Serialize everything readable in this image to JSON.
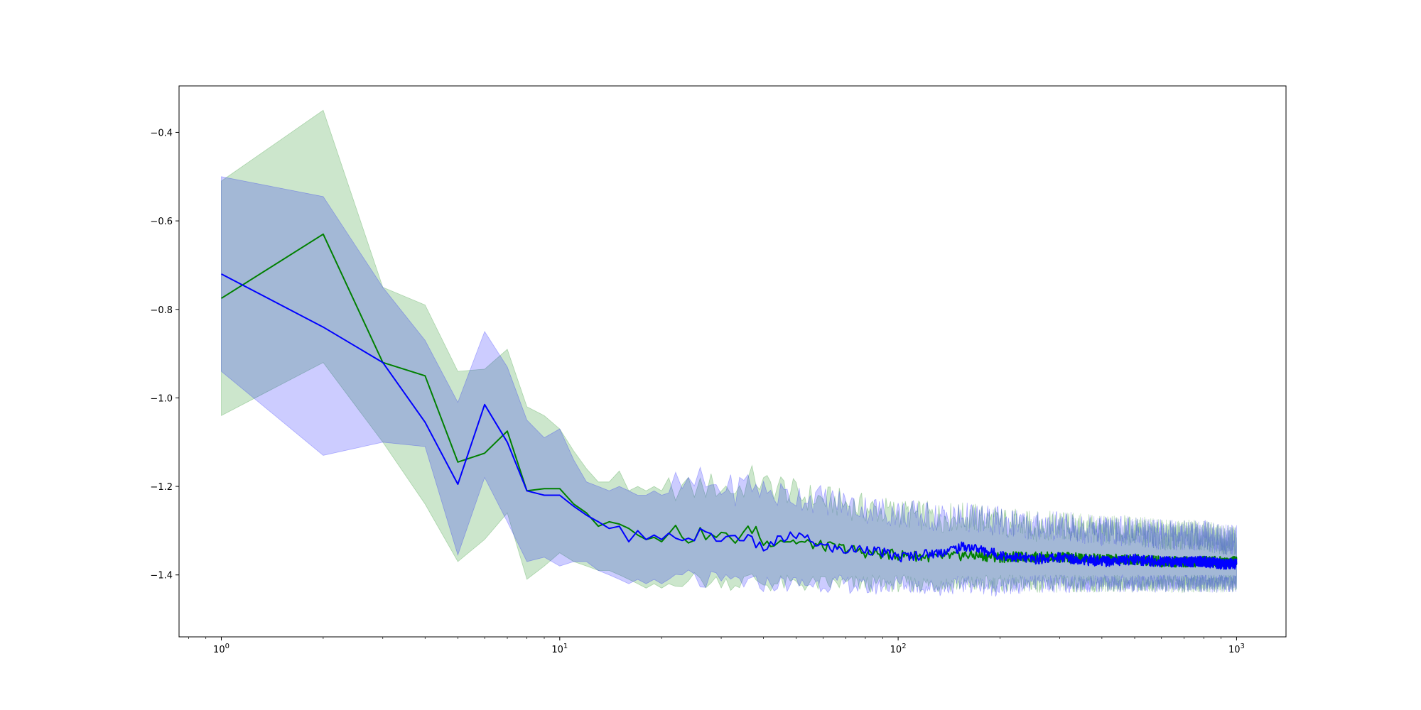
{
  "chart_data": {
    "type": "line",
    "title": "",
    "xlabel": "",
    "ylabel": "",
    "xscale": "log",
    "xlim": [
      0.75,
      1400
    ],
    "ylim": [
      -1.54,
      -0.295
    ],
    "grid": false,
    "legend": "none",
    "x_ticks": [
      {
        "base": "10",
        "exp": "0",
        "value": 1
      },
      {
        "base": "10",
        "exp": "1",
        "value": 10
      },
      {
        "base": "10",
        "exp": "2",
        "value": 100
      },
      {
        "base": "10",
        "exp": "3",
        "value": 1000
      }
    ],
    "y_ticks": [
      {
        "label": "−0.4",
        "value": -0.4
      },
      {
        "label": "−0.6",
        "value": -0.6
      },
      {
        "label": "−0.8",
        "value": -0.8
      },
      {
        "label": "−1.0",
        "value": -1.0
      },
      {
        "label": "−1.2",
        "value": -1.2
      },
      {
        "label": "−1.4",
        "value": -1.4
      }
    ],
    "series": [
      {
        "color": "#008000",
        "band_color": "#008000",
        "x": [
          1,
          2,
          3,
          4,
          5,
          6,
          7,
          8,
          9,
          10,
          11,
          12,
          13,
          14,
          15,
          16,
          17,
          18,
          19,
          20,
          22,
          24,
          26,
          28,
          30,
          33,
          36,
          38,
          40,
          45,
          50,
          60,
          70,
          80,
          100,
          130,
          160,
          200,
          250,
          300,
          400,
          500,
          600,
          700,
          800,
          900,
          1000
        ],
        "values": [
          -0.775,
          -0.63,
          -0.92,
          -0.95,
          -1.145,
          -1.125,
          -1.075,
          -1.21,
          -1.205,
          -1.205,
          -1.24,
          -1.26,
          -1.29,
          -1.28,
          -1.285,
          -1.295,
          -1.31,
          -1.32,
          -1.315,
          -1.325,
          -1.295,
          -1.32,
          -1.305,
          -1.315,
          -1.31,
          -1.32,
          -1.3,
          -1.295,
          -1.33,
          -1.32,
          -1.325,
          -1.335,
          -1.34,
          -1.35,
          -1.355,
          -1.36,
          -1.355,
          -1.36,
          -1.36,
          -1.36,
          -1.365,
          -1.365,
          -1.37,
          -1.37,
          -1.37,
          -1.37,
          -1.37
        ],
        "lower": [
          -1.04,
          -0.92,
          -1.1,
          -1.24,
          -1.37,
          -1.32,
          -1.26,
          -1.41,
          -1.38,
          -1.35,
          -1.37,
          -1.38,
          -1.39,
          -1.39,
          -1.4,
          -1.41,
          -1.42,
          -1.43,
          -1.42,
          -1.43,
          -1.41,
          -1.41,
          -1.41,
          -1.42,
          -1.41,
          -1.42,
          -1.41,
          -1.41,
          -1.42,
          -1.42,
          -1.42,
          -1.42,
          -1.42,
          -1.42,
          -1.42,
          -1.42,
          -1.42,
          -1.42,
          -1.42,
          -1.42,
          -1.42,
          -1.42,
          -1.42,
          -1.42,
          -1.42,
          -1.42,
          -1.42
        ],
        "upper": [
          -0.51,
          -0.35,
          -0.75,
          -0.79,
          -0.94,
          -0.935,
          -0.89,
          -1.02,
          -1.04,
          -1.07,
          -1.12,
          -1.16,
          -1.19,
          -1.19,
          -1.165,
          -1.21,
          -1.2,
          -1.21,
          -1.2,
          -1.21,
          -1.2,
          -1.21,
          -1.2,
          -1.2,
          -1.2,
          -1.21,
          -1.19,
          -1.18,
          -1.2,
          -1.2,
          -1.22,
          -1.23,
          -1.24,
          -1.25,
          -1.26,
          -1.27,
          -1.27,
          -1.28,
          -1.29,
          -1.29,
          -1.3,
          -1.3,
          -1.31,
          -1.31,
          -1.31,
          -1.32,
          -1.32
        ]
      },
      {
        "color": "#0000ff",
        "band_color": "#0000ff",
        "x": [
          1,
          2,
          3,
          4,
          5,
          6,
          7,
          8,
          9,
          10,
          11,
          12,
          13,
          14,
          15,
          16,
          17,
          18,
          19,
          20,
          22,
          24,
          26,
          28,
          30,
          33,
          36,
          38,
          40,
          45,
          50,
          60,
          70,
          80,
          100,
          130,
          160,
          200,
          250,
          300,
          400,
          500,
          600,
          700,
          800,
          900,
          1000
        ],
        "values": [
          -0.72,
          -0.84,
          -0.92,
          -1.055,
          -1.195,
          -1.015,
          -1.1,
          -1.21,
          -1.22,
          -1.22,
          -1.245,
          -1.265,
          -1.28,
          -1.295,
          -1.29,
          -1.325,
          -1.3,
          -1.32,
          -1.31,
          -1.32,
          -1.31,
          -1.32,
          -1.305,
          -1.315,
          -1.32,
          -1.31,
          -1.32,
          -1.33,
          -1.34,
          -1.32,
          -1.31,
          -1.335,
          -1.345,
          -1.34,
          -1.36,
          -1.35,
          -1.335,
          -1.355,
          -1.365,
          -1.36,
          -1.37,
          -1.365,
          -1.37,
          -1.37,
          -1.37,
          -1.375,
          -1.375
        ],
        "lower": [
          -0.94,
          -1.13,
          -1.1,
          -1.11,
          -1.355,
          -1.18,
          -1.28,
          -1.37,
          -1.36,
          -1.38,
          -1.37,
          -1.37,
          -1.39,
          -1.4,
          -1.41,
          -1.42,
          -1.41,
          -1.42,
          -1.41,
          -1.42,
          -1.41,
          -1.4,
          -1.42,
          -1.41,
          -1.42,
          -1.41,
          -1.42,
          -1.42,
          -1.42,
          -1.42,
          -1.42,
          -1.42,
          -1.42,
          -1.43,
          -1.42,
          -1.43,
          -1.42,
          -1.43,
          -1.42,
          -1.42,
          -1.42,
          -1.42,
          -1.42,
          -1.42,
          -1.42,
          -1.42,
          -1.42
        ],
        "upper": [
          -0.5,
          -0.545,
          -0.75,
          -0.87,
          -1.01,
          -0.85,
          -0.93,
          -1.05,
          -1.09,
          -1.07,
          -1.14,
          -1.19,
          -1.2,
          -1.21,
          -1.2,
          -1.21,
          -1.22,
          -1.22,
          -1.21,
          -1.22,
          -1.2,
          -1.2,
          -1.19,
          -1.2,
          -1.2,
          -1.21,
          -1.19,
          -1.2,
          -1.21,
          -1.22,
          -1.22,
          -1.23,
          -1.24,
          -1.25,
          -1.26,
          -1.27,
          -1.27,
          -1.28,
          -1.29,
          -1.29,
          -1.3,
          -1.3,
          -1.31,
          -1.31,
          -1.31,
          -1.32,
          -1.32
        ]
      }
    ]
  }
}
